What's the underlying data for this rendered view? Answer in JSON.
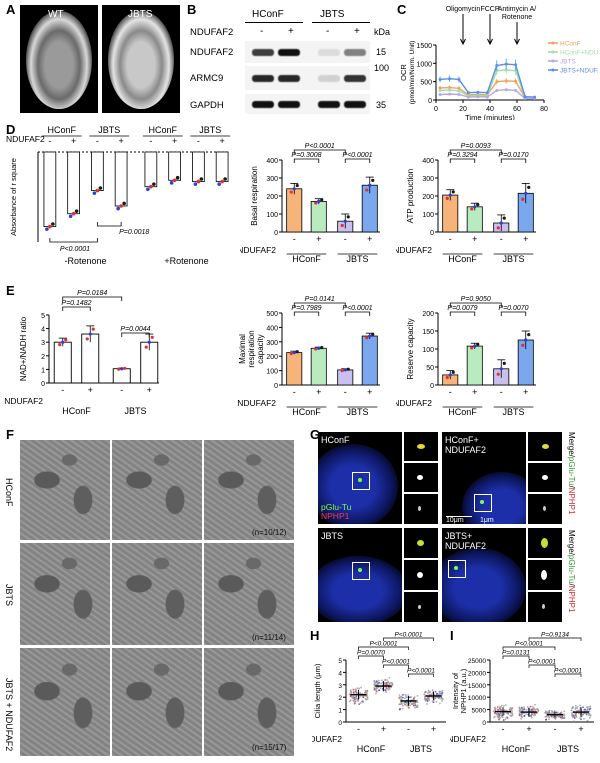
{
  "panel_labels": [
    "A",
    "B",
    "C",
    "D",
    "E",
    "F",
    "G",
    "H",
    "I"
  ],
  "panel_a": {
    "wt_label": "WT",
    "jbts_label": "JBTS"
  },
  "panel_b": {
    "groups": [
      "HConF",
      "JBTS"
    ],
    "row_label": "NDUFAF2",
    "lanes": [
      "-",
      "+",
      "-",
      "+"
    ],
    "kda": "kDa",
    "proteins": [
      {
        "name": "NDUFAF2",
        "mw": "15"
      },
      {
        "name": "ARMC9",
        "mw": "100"
      },
      {
        "name": "GAPDH",
        "mw": "35"
      }
    ],
    "band_intensity": {
      "NDUFAF2": [
        0.8,
        1.0,
        0.1,
        0.5
      ],
      "ARMC9": [
        0.9,
        0.9,
        0.15,
        0.85
      ],
      "GAPDH": [
        1.0,
        1.0,
        1.0,
        1.0
      ]
    }
  },
  "panel_c_labels": {
    "oligomycin": "Oligomycin",
    "fccp": "FCCP",
    "antimycin": "Antimycin A/\nRotenone"
  },
  "panel_d_labels": {
    "rotenone_minus": "-Rotenone",
    "rotenone_plus": "+Rotenone"
  },
  "panel_f": {
    "rows": [
      "HConF",
      "JBTS",
      "JBTS + NDUFAF2"
    ],
    "counts": [
      "(n=10/12)",
      "(n=11/14)",
      "(n=15/17)"
    ]
  },
  "panel_g": {
    "cells": [
      "HConF",
      "HConF+\nNDUFAF2",
      "JBTS",
      "JBTS+\nNDUFAF2"
    ],
    "stain_green": "pGlu-Tu",
    "stain_red": "NPHP1",
    "side_label_merge": "Merge/",
    "scale1": "10μm",
    "scale2": "1μm"
  },
  "chart_data": [
    {
      "id": "C",
      "type": "line",
      "xlabel": "Time (minutes)",
      "ylabel": "OCR\n(pmol/min/Norm. Unit)",
      "xlim": [
        0,
        80
      ],
      "ylim": [
        0,
        1500
      ],
      "xticks": [
        0,
        20,
        40,
        60,
        80
      ],
      "yticks": [
        0,
        500,
        1000,
        1500
      ],
      "x": [
        3,
        10,
        17,
        24,
        31,
        38,
        45,
        52,
        59,
        66,
        73
      ],
      "colors": {
        "HConF": "#f2a25c",
        "HConF+NDUFAF2": "#9fe0a8",
        "JBTS": "#b7a7e8",
        "JBTS+NDUFAF2": "#5a8fe8"
      },
      "series": [
        {
          "name": "HConF",
          "values": [
            330,
            340,
            320,
            140,
            150,
            140,
            500,
            520,
            510,
            60,
            50
          ]
        },
        {
          "name": "HConF+NDUFAF2",
          "values": [
            260,
            270,
            250,
            110,
            120,
            110,
            800,
            820,
            800,
            60,
            60
          ]
        },
        {
          "name": "JBTS",
          "values": [
            150,
            160,
            150,
            80,
            90,
            80,
            260,
            280,
            260,
            40,
            40
          ]
        },
        {
          "name": "JBTS+NDUFAF2",
          "values": [
            560,
            580,
            560,
            200,
            210,
            200,
            940,
            980,
            960,
            90,
            80
          ]
        }
      ]
    },
    {
      "id": "D",
      "type": "bar",
      "ylabel": "Absorbance of r square",
      "group_labels": [
        "HConF",
        "JBTS",
        "HConF",
        "JBTS"
      ],
      "row_label": "NDUFAF2",
      "lanes": [
        "-",
        "+",
        "-",
        "+",
        "-",
        "+",
        "-",
        "+"
      ],
      "values": [
        -0.58,
        -0.48,
        -0.3,
        -0.42,
        -0.27,
        -0.22,
        -0.23,
        -0.23
      ],
      "ylim": [
        -0.7,
        0
      ],
      "pvalues": [
        "P<0.0001",
        "P=0.0018"
      ]
    },
    {
      "id": "basal",
      "type": "bar",
      "ylabel": "Basal respiration",
      "categories": [
        "-",
        "+",
        "-",
        "+"
      ],
      "groups": [
        "HConF",
        "JBTS"
      ],
      "row_label": "NDUFAF2",
      "values": [
        240,
        170,
        60,
        260
      ],
      "errors": [
        30,
        15,
        40,
        45
      ],
      "ylim": [
        0,
        400
      ],
      "yticks": [
        0,
        100,
        200,
        300,
        400
      ],
      "colors": [
        "#f7b47a",
        "#b9ebc0",
        "#c9c0ef",
        "#7aa7ee"
      ],
      "pvalues": [
        "P<0.0001",
        "P=0.3008",
        "P<0.0001"
      ]
    },
    {
      "id": "atp",
      "type": "bar",
      "ylabel": "ATP production",
      "categories": [
        "-",
        "+",
        "-",
        "+"
      ],
      "groups": [
        "HConF",
        "JBTS"
      ],
      "row_label": "NDUFAF2",
      "values": [
        205,
        140,
        50,
        215
      ],
      "errors": [
        30,
        20,
        45,
        55
      ],
      "ylim": [
        0,
        400
      ],
      "yticks": [
        0,
        100,
        200,
        300,
        400
      ],
      "colors": [
        "#f7b47a",
        "#b9ebc0",
        "#c9c0ef",
        "#7aa7ee"
      ],
      "pvalues": [
        "P=0.0093",
        "P=0.3294",
        "P=0.0170"
      ]
    },
    {
      "id": "E",
      "type": "bar",
      "ylabel": "NAD+/NADH ratio",
      "categories": [
        "-",
        "+",
        "-",
        "+"
      ],
      "groups": [
        "HConF",
        "JBTS"
      ],
      "row_label": "NDUFAF2",
      "values": [
        3.0,
        3.6,
        1.05,
        3.0
      ],
      "errors": [
        0.3,
        0.6,
        0.05,
        0.6
      ],
      "ylim": [
        0,
        5
      ],
      "yticks": [
        0,
        1,
        2,
        3,
        4,
        5
      ],
      "colors": [
        "#ffffff",
        "#ffffff",
        "#ffffff",
        "#ffffff"
      ],
      "pvalues": [
        "P=0.0184",
        "P=0.1482",
        "P=0.0044"
      ]
    },
    {
      "id": "maximal",
      "type": "bar",
      "ylabel": "Maximal\nrespiration\ncapacity",
      "categories": [
        "-",
        "+",
        "-",
        "+"
      ],
      "groups": [
        "HConF",
        "JBTS"
      ],
      "row_label": "NDUFAF2",
      "values": [
        225,
        255,
        105,
        340
      ],
      "errors": [
        10,
        8,
        8,
        20
      ],
      "ylim": [
        0,
        500
      ],
      "yticks": [
        0,
        100,
        200,
        300,
        400,
        500
      ],
      "colors": [
        "#f7b47a",
        "#b9ebc0",
        "#c9c0ef",
        "#7aa7ee"
      ],
      "pvalues": [
        "P=0.0141",
        "P=0.7989",
        "P<0.0001"
      ]
    },
    {
      "id": "reserve",
      "type": "bar",
      "ylabel": "Reserve capacity",
      "categories": [
        "-",
        "+",
        "-",
        "+"
      ],
      "groups": [
        "HConF",
        "JBTS"
      ],
      "row_label": "NDUFAF2",
      "values": [
        28,
        108,
        45,
        125
      ],
      "errors": [
        12,
        8,
        25,
        25
      ],
      "ylim": [
        0,
        200
      ],
      "yticks": [
        0,
        50,
        100,
        150,
        200
      ],
      "colors": [
        "#f7b47a",
        "#b9ebc0",
        "#c9c0ef",
        "#7aa7ee"
      ],
      "pvalues": [
        "P=0.9050",
        "P=0.0079",
        "P=0.0070"
      ]
    },
    {
      "id": "H",
      "type": "scatter",
      "ylabel": "Cilia length (μm)",
      "categories": [
        "-",
        "+",
        "-",
        "+"
      ],
      "groups": [
        "HConF",
        "JBTS"
      ],
      "row_label": "NDUFAF2",
      "means": [
        2.2,
        2.9,
        1.7,
        2.1
      ],
      "sd": [
        0.4,
        0.4,
        0.4,
        0.35
      ],
      "ylim": [
        0,
        5
      ],
      "yticks": [
        0,
        1,
        2,
        3,
        4,
        5
      ],
      "pvalues": [
        "P<0.0001",
        "P<0.0001",
        "P=0.0070",
        "P<0.0001",
        "P<0.0001"
      ]
    },
    {
      "id": "I",
      "type": "scatter",
      "ylabel": "Intensity of\nNPHP1 (a.u.)",
      "categories": [
        "-",
        "+",
        "-",
        "+"
      ],
      "groups": [
        "HConF",
        "JBTS"
      ],
      "row_label": "NDUFAF2",
      "means": [
        4200,
        4000,
        3000,
        4000
      ],
      "sd": [
        1800,
        1800,
        1200,
        2000
      ],
      "ylim": [
        0,
        25000
      ],
      "yticks": [
        0,
        5000,
        10000,
        15000,
        20000,
        25000
      ],
      "pvalues": [
        "P=0.9134",
        "P<0.0001",
        "P=0.0131",
        "P<0.0001",
        "P<0.0001"
      ]
    }
  ]
}
